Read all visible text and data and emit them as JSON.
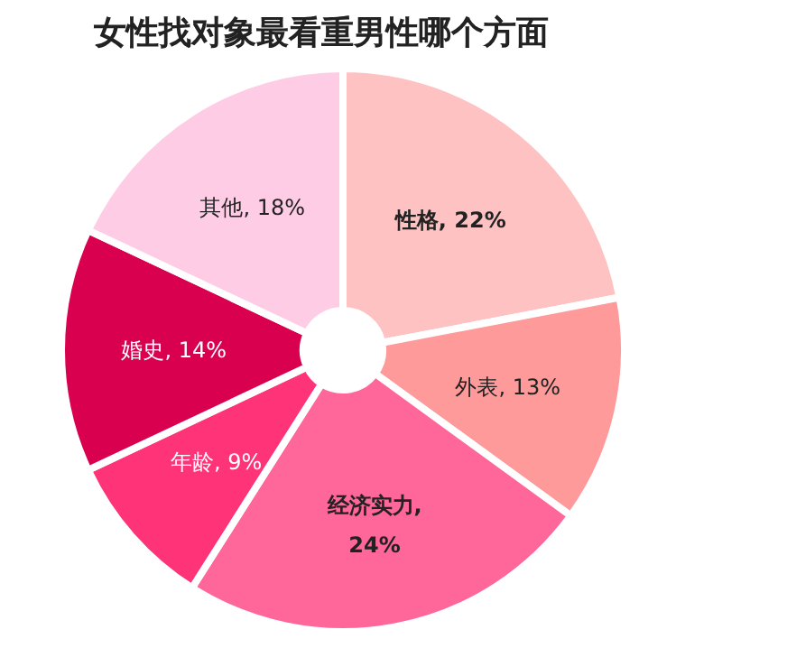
{
  "chart_data": {
    "type": "donut",
    "title": "女性找对象最看重男性哪个方面",
    "categories": [
      "性格",
      "外表",
      "经济实力",
      "年龄",
      "婚史",
      "其他"
    ],
    "values": [
      22,
      13,
      24,
      9,
      14,
      18
    ],
    "colors": [
      "#ffc2c2",
      "#ff9a9a",
      "#ff6699",
      "#ff3377",
      "#d90050",
      "#ffcce5"
    ],
    "value_labels": [
      ", 22%",
      ", 13%",
      ", 24%",
      ", 9%",
      ", 14%",
      ", 18%"
    ]
  }
}
